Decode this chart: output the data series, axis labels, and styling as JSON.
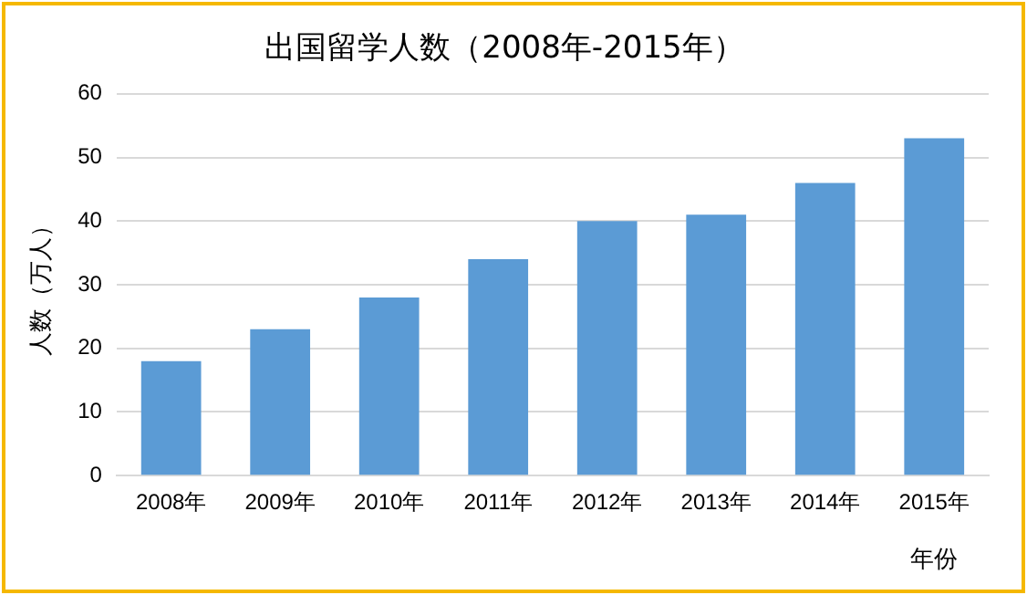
{
  "chart_data": {
    "type": "bar",
    "title": "出国留学人数（2008年-2015年）",
    "ylabel": "人数（万人）",
    "xlabel": "年份",
    "categories": [
      "2008年",
      "2009年",
      "2010年",
      "2011年",
      "2012年",
      "2013年",
      "2014年",
      "2015年"
    ],
    "values": [
      18,
      23,
      28,
      34,
      40,
      41,
      46,
      53
    ],
    "color": "#5b9bd5",
    "ylim": [
      0,
      60
    ],
    "yticks": [
      0,
      10,
      20,
      30,
      40,
      50,
      60
    ],
    "grid": "y",
    "legend": false
  }
}
